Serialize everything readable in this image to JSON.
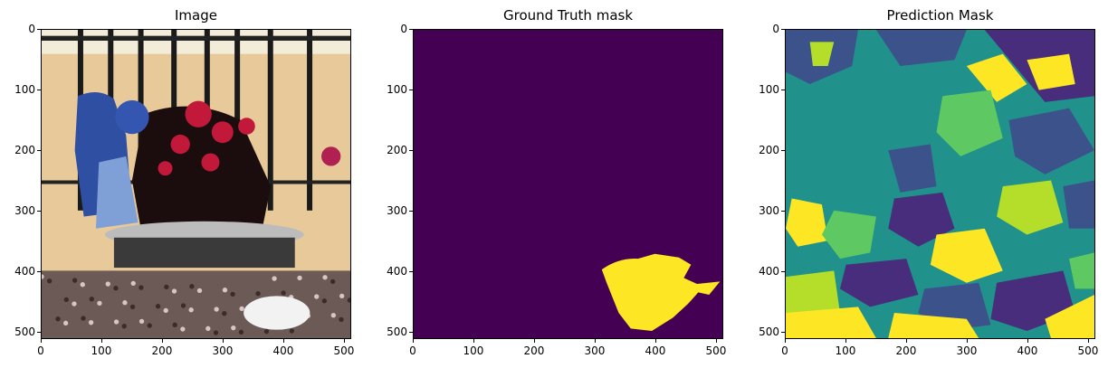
{
  "panels": [
    {
      "title": "Image",
      "kind": "photo",
      "xticks": [
        "0",
        "100",
        "200",
        "300",
        "400",
        "500"
      ],
      "yticks": [
        "0",
        "100",
        "200",
        "300",
        "400",
        "500"
      ],
      "tick_values": [
        0,
        100,
        200,
        300,
        400,
        500
      ],
      "extent": 512
    },
    {
      "title": "Ground Truth mask",
      "kind": "gt",
      "xticks": [
        "0",
        "100",
        "200",
        "300",
        "400",
        "500"
      ],
      "yticks": [
        "0",
        "100",
        "200",
        "300",
        "400",
        "500"
      ],
      "tick_values": [
        0,
        100,
        200,
        300,
        400,
        500
      ],
      "extent": 512
    },
    {
      "title": "Prediction Mask",
      "kind": "pred",
      "xticks": [
        "0",
        "100",
        "200",
        "300",
        "400",
        "500"
      ],
      "yticks": [
        "0",
        "100",
        "200",
        "300",
        "400",
        "500"
      ],
      "tick_values": [
        0,
        100,
        200,
        300,
        400,
        500
      ],
      "extent": 512
    }
  ],
  "colors": {
    "viridis_dark": "#440154",
    "viridis_yellow": "#fde725",
    "viridis_teal": "#21918c",
    "viridis_blue": "#3b528b",
    "viridis_green": "#5ec962",
    "viridis_indigo": "#472d7b",
    "viridis_lime": "#b5de2b"
  }
}
